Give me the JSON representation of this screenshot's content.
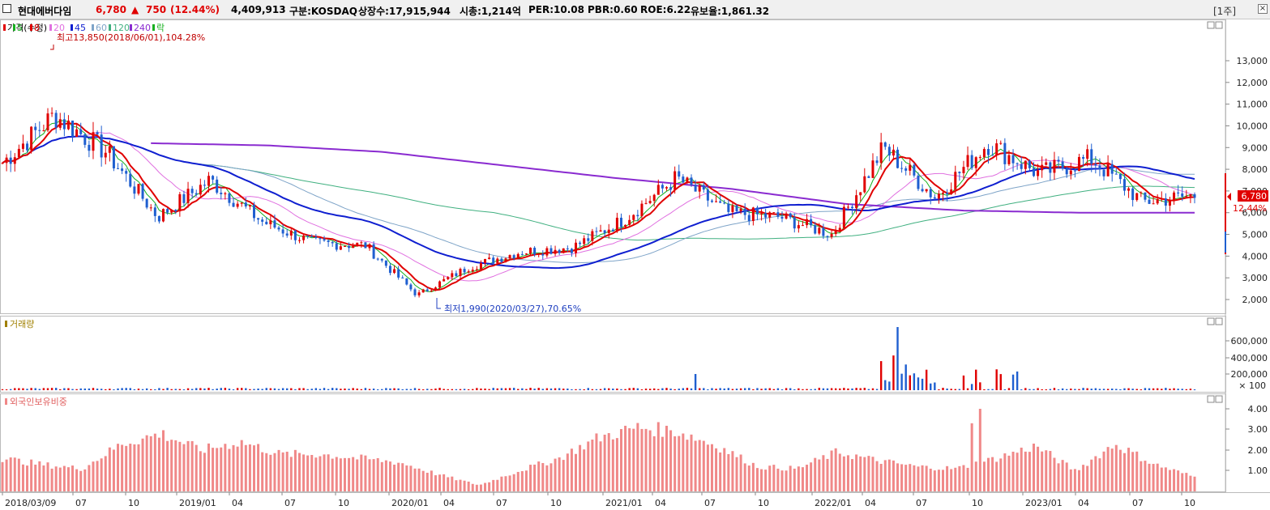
{
  "header": {
    "name": "현대에버다임",
    "price": "6,780",
    "change_symbol": "▲",
    "change": "750",
    "change_pct": "(12.44%)",
    "volume": "4,409,913",
    "market": "구분:KOSDAQ",
    "shares": "상장수:17,915,944",
    "market_cap": "시총:1,214억",
    "per": "PER:10.08",
    "pbr": "PBR:0.60",
    "roe": "ROE:6.22",
    "float": "유보율:1,861.32",
    "period": "[1주]",
    "close": "×"
  },
  "colors": {
    "up": "#e00000",
    "down": "#1f5fd0",
    "ma5": "#17b020",
    "ma8": "#e00000",
    "ma20": "#e070e0",
    "ma45": "#0f1fd0",
    "ma60": "#7ea4c8",
    "ma120": "#40b080",
    "ma240": "#8a2bd0",
    "volume_label": "#a08000",
    "foreign": "#f08888"
  },
  "panels": {
    "price": {
      "legend": [
        {
          "label": "가격(수정)",
          "color": "#e00000"
        },
        {
          "label": "5",
          "color": "#17b020"
        },
        {
          "label": "8",
          "color": "#e00000"
        },
        {
          "label": "20",
          "color": "#e070e0"
        },
        {
          "label": "45",
          "color": "#0f1fd0"
        },
        {
          "label": "60",
          "color": "#7ea4c8"
        },
        {
          "label": "120",
          "color": "#40b080"
        },
        {
          "label": "240",
          "color": "#8a2bd0"
        },
        {
          "label": "락",
          "color": "#17b020"
        }
      ],
      "y_ticks": [
        "13,000",
        "12,000",
        "11,000",
        "10,000",
        "9,000",
        "8,000",
        "7,000",
        "6,000",
        "5,000",
        "4,000",
        "3,000",
        "2,000"
      ],
      "high_annotation": "최고13,850(2018/06/01),104.28%",
      "low_annotation": "최저1,990(2020/03/27),70.65%",
      "current_price_tag": "6,780",
      "current_pct_tag": "12.44%"
    },
    "volume": {
      "title": "거래량",
      "y_ticks": [
        "600,000",
        "400,000",
        "200,000"
      ],
      "unit": "× 100"
    },
    "foreign": {
      "title": "외국인보유비중",
      "y_ticks": [
        "4.00",
        "3.00",
        "2.00",
        "1.00"
      ]
    }
  },
  "x_axis": [
    "2018/03/09",
    "07",
    "10",
    "2019/01",
    "04",
    "07",
    "10",
    "2020/01",
    "04",
    "07",
    "10",
    "2021/01",
    "04",
    "07",
    "10",
    "2022/01",
    "04",
    "07",
    "10",
    "2023/01",
    "04",
    "07",
    "10"
  ],
  "chart_data": {
    "type": "line",
    "title": "현대에버다임",
    "series": [
      {
        "name": "가격(수정)",
        "x": [
          "2018/03",
          "2018/06",
          "2018/09",
          "2018/12",
          "2019/03",
          "2019/06",
          "2019/09",
          "2019/12",
          "2020/03",
          "2020/06",
          "2020/09",
          "2020/12",
          "2021/03",
          "2021/06",
          "2021/09",
          "2021/12",
          "2022/03",
          "2022/06",
          "2022/09",
          "2022/12",
          "2023/03",
          "2023/06",
          "2023/09",
          "2023/11"
        ],
        "values": [
          8300,
          10500,
          8800,
          5800,
          7500,
          5600,
          4600,
          4500,
          2200,
          3500,
          4200,
          4400,
          5700,
          7600,
          6000,
          5800,
          5000,
          9000,
          6700,
          9200,
          7800,
          8500,
          6500,
          6780
        ]
      },
      {
        "name": "240",
        "x": [
          "2018/11",
          "2019/06",
          "2020/01",
          "2020/06",
          "2021/01",
          "2021/06",
          "2022/01",
          "2022/06",
          "2023/01",
          "2023/11"
        ],
        "values": [
          9200,
          9100,
          8800,
          8200,
          7600,
          7100,
          6400,
          6100,
          6000,
          6000
        ]
      }
    ],
    "annotations": [
      "최고13,850(2018/06/01),104.28%",
      "최저1,990(2020/03/27),70.65%"
    ],
    "ylim": [
      1500,
      13800
    ]
  }
}
